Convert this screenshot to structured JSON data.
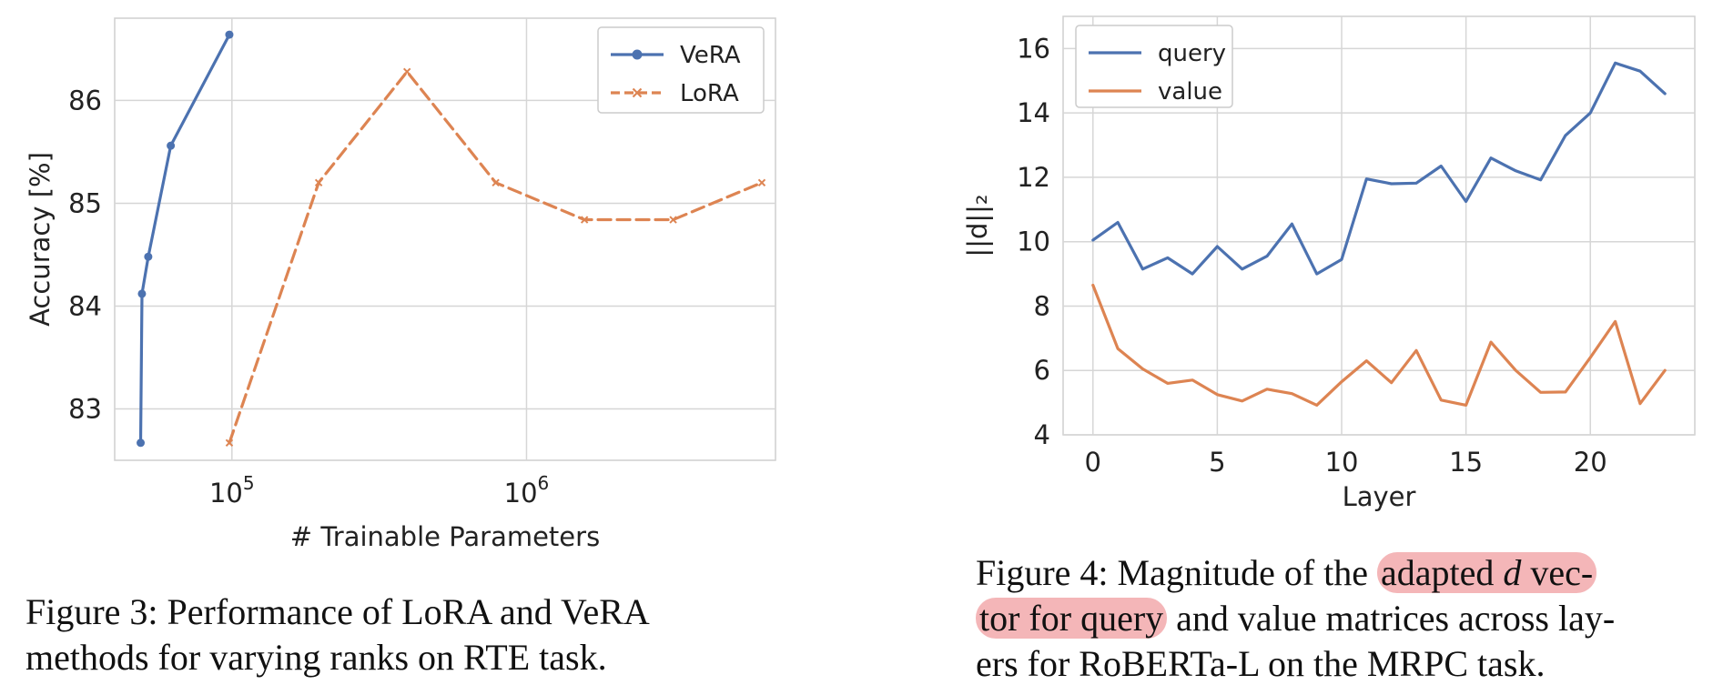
{
  "chart_data": [
    {
      "type": "line",
      "xscale": "log",
      "xlim": [
        40000,
        7000000
      ],
      "ylim": [
        82.5,
        86.8
      ],
      "xlabel": "# Trainable Parameters",
      "ylabel": "Accuracy [%]",
      "xticks": [
        100000,
        1000000
      ],
      "xtick_labels": [
        {
          "base": "10",
          "exp": "5"
        },
        {
          "base": "10",
          "exp": "6"
        }
      ],
      "yticks": [
        83,
        84,
        85,
        86
      ],
      "yticks_labels": [
        "83",
        "84",
        "85",
        "86"
      ],
      "grid": true,
      "legend": "top-right",
      "series": [
        {
          "name": "VeRA",
          "color": "#4c72b0",
          "marker": "circle",
          "linestyle": "solid",
          "x": [
            49000,
            49500,
            52000,
            62000,
            98000
          ],
          "y": [
            82.67,
            84.12,
            84.48,
            85.56,
            86.64
          ]
        },
        {
          "name": "LoRA",
          "color": "#dd8452",
          "marker": "x",
          "linestyle": "dashed",
          "x": [
            98000,
            197000,
            393000,
            786000,
            1573000,
            3146000,
            6291000
          ],
          "y": [
            82.67,
            85.2,
            86.28,
            85.2,
            84.84,
            84.84,
            85.2
          ]
        }
      ]
    },
    {
      "type": "line",
      "xlim": [
        -1.2,
        24.2
      ],
      "ylim": [
        4,
        17.0
      ],
      "xlabel": "Layer",
      "ylabel": "||d||₂",
      "xticks": [
        0,
        5,
        10,
        15,
        20
      ],
      "xticks_labels": [
        "0",
        "5",
        "10",
        "15",
        "20"
      ],
      "yticks": [
        4,
        6,
        8,
        10,
        12,
        14,
        16
      ],
      "yticks_labels": [
        "4",
        "6",
        "8",
        "10",
        "12",
        "14",
        "16"
      ],
      "grid": true,
      "legend": "top-left",
      "series": [
        {
          "name": "query",
          "color": "#4c72b0",
          "x": [
            0,
            1,
            2,
            3,
            4,
            5,
            6,
            7,
            8,
            9,
            10,
            11,
            12,
            13,
            14,
            15,
            16,
            17,
            18,
            19,
            20,
            21,
            22,
            23
          ],
          "y": [
            10.05,
            10.6,
            9.15,
            9.5,
            9.0,
            9.85,
            9.15,
            9.55,
            10.55,
            9.0,
            9.45,
            11.95,
            11.8,
            11.82,
            12.35,
            11.25,
            12.6,
            12.2,
            11.92,
            13.3,
            14.0,
            15.55,
            15.3,
            14.6
          ]
        },
        {
          "name": "value",
          "color": "#dd8452",
          "x": [
            0,
            1,
            2,
            3,
            4,
            5,
            6,
            7,
            8,
            9,
            10,
            11,
            12,
            13,
            14,
            15,
            16,
            17,
            18,
            19,
            20,
            21,
            22,
            23
          ],
          "y": [
            8.65,
            6.68,
            6.05,
            5.6,
            5.7,
            5.25,
            5.05,
            5.42,
            5.28,
            4.92,
            5.65,
            6.3,
            5.62,
            6.62,
            5.08,
            4.92,
            6.88,
            6.0,
            5.32,
            5.33,
            6.4,
            7.52,
            4.97,
            6.0
          ]
        }
      ]
    }
  ],
  "captions": {
    "figure3": {
      "line1": "Figure 3:  Performance of LoRA and VeRA",
      "line2": "methods for varying ranks on RTE task."
    },
    "figure4": {
      "line1_pre": "Figure 4: Magnitude of the ",
      "line1_hl_a": "adapted ",
      "line1_hl_d": "d",
      "line1_hl_b": " vec-",
      "line2_hl": "tor for query",
      "line2_post": " and value matrices across lay-",
      "line3": "ers for RoBERTa-L on the MRPC task."
    }
  }
}
